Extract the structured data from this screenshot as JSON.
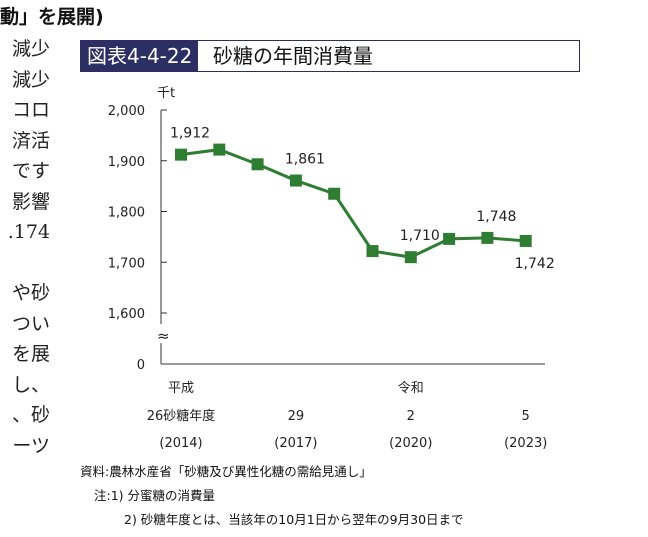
{
  "page": {
    "heading_fragment": "動」を展開)",
    "side_text_lines": [
      "減少",
      "減少",
      "コロ",
      "済活",
      "です",
      "影響",
      ".174",
      "",
      "や砂",
      "つい",
      "を展",
      "し、",
      "、砂",
      "ーツ"
    ]
  },
  "figure": {
    "id": "図表4-4-22",
    "title": "砂糖の年間消費量"
  },
  "chart_data": {
    "type": "line",
    "title": "砂糖の年間消費量",
    "unit_label": "千t",
    "ylim": [
      1600,
      2000
    ],
    "y_ticks": [
      "2,000",
      "1,900",
      "1,800",
      "1,700",
      "1,600"
    ],
    "y_tick_values": [
      2000,
      1900,
      1800,
      1700,
      1600
    ],
    "y_zero_label": "0",
    "axis_break_symbol": "≈",
    "series": [
      {
        "values": [
          1912,
          1922,
          1893,
          1861,
          1835,
          1722,
          1710,
          1746,
          1748,
          1742
        ]
      }
    ],
    "x_count": 10,
    "x_labels": [
      {
        "index": 0,
        "era": "平成",
        "year": "26砂糖年度",
        "western": "(2014)"
      },
      {
        "index": 3,
        "era": "",
        "year": "29",
        "western": "(2017)"
      },
      {
        "index": 6,
        "era": "令和",
        "year": "2",
        "western": "(2020)"
      },
      {
        "index": 9,
        "era": "",
        "year": "5",
        "western": "(2023)"
      }
    ],
    "data_labels": [
      {
        "index": 0,
        "text": "1,912",
        "pos": "above"
      },
      {
        "index": 3,
        "text": "1,861",
        "pos": "above"
      },
      {
        "index": 6,
        "text": "1,710",
        "pos": "above"
      },
      {
        "index": 8,
        "text": "1,748",
        "pos": "above"
      },
      {
        "index": 9,
        "text": "1,742",
        "pos": "below"
      }
    ],
    "line_color": "#2e7d32",
    "marker_color": "#2e7d32"
  },
  "footnotes": {
    "source": "資料:農林水産省「砂糖及び異性化糖の需給見通し」",
    "note1": "注:1) 分蜜糖の消費量",
    "note2": "2) 砂糖年度とは、当該年の10月1日から翌年の9月30日まで"
  }
}
